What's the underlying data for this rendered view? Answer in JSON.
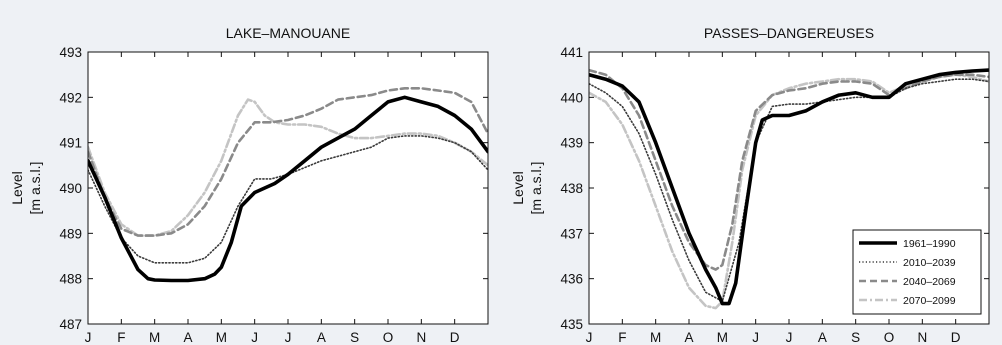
{
  "chart_data": [
    {
      "type": "line",
      "title": "LAKE–MANOUANE",
      "ylabel_line1": "Level",
      "ylabel_line2": "[m a.s.l.]",
      "xlabel": "",
      "x_ticks": [
        "J",
        "F",
        "M",
        "A",
        "M",
        "J",
        "J",
        "A",
        "S",
        "O",
        "N",
        "D"
      ],
      "y_ticks": [
        "487",
        "488",
        "489",
        "490",
        "491",
        "492",
        "493"
      ],
      "ylim": [
        487,
        493
      ],
      "xlim": [
        0,
        12
      ],
      "grid": false,
      "legend": null,
      "series": [
        {
          "name": "1961–1990",
          "style": "solid",
          "color": "#000000",
          "x": [
            0,
            0.5,
            1,
            1.5,
            1.8,
            2,
            2.5,
            3,
            3.5,
            3.8,
            4,
            4.3,
            4.6,
            5,
            5.3,
            5.6,
            6,
            6.5,
            7,
            7.5,
            8,
            8.5,
            9,
            9.5,
            10,
            10.5,
            11,
            11.5,
            12
          ],
          "y": [
            490.6,
            489.8,
            488.9,
            488.2,
            488.0,
            487.97,
            487.96,
            487.96,
            488.0,
            488.1,
            488.25,
            488.8,
            489.6,
            489.9,
            490.0,
            490.1,
            490.3,
            490.6,
            490.9,
            491.1,
            491.3,
            491.6,
            491.9,
            492.0,
            491.9,
            491.8,
            491.6,
            491.3,
            490.8
          ]
        },
        {
          "name": "2010–2039",
          "style": "dotted",
          "color": "#3a3a3a",
          "x": [
            0,
            0.5,
            1,
            1.5,
            2,
            2.5,
            3,
            3.5,
            4,
            4.5,
            5,
            5.5,
            6,
            6.5,
            7,
            7.5,
            8,
            8.5,
            9,
            9.5,
            10,
            10.5,
            11,
            11.5,
            12
          ],
          "y": [
            490.4,
            489.6,
            488.9,
            488.5,
            488.35,
            488.35,
            488.35,
            488.45,
            488.8,
            489.6,
            490.2,
            490.2,
            490.3,
            490.45,
            490.6,
            490.7,
            490.8,
            490.9,
            491.1,
            491.15,
            491.15,
            491.1,
            491.0,
            490.8,
            490.4
          ]
        },
        {
          "name": "2040–2069",
          "style": "dashed",
          "color": "#8a8a8a",
          "x": [
            0,
            0.5,
            1,
            1.5,
            2,
            2.5,
            3,
            3.5,
            4,
            4.5,
            5,
            5.5,
            6,
            6.5,
            7,
            7.5,
            8,
            8.5,
            9,
            9.5,
            10,
            10.5,
            11,
            11.5,
            12
          ],
          "y": [
            490.8,
            489.8,
            489.1,
            488.95,
            488.95,
            489.0,
            489.2,
            489.6,
            490.2,
            491.0,
            491.45,
            491.45,
            491.5,
            491.6,
            491.75,
            491.95,
            492.0,
            492.05,
            492.15,
            492.2,
            492.2,
            492.15,
            492.1,
            491.9,
            491.2
          ]
        },
        {
          "name": "2070–2099",
          "style": "dashdot",
          "color": "#c4c4c4",
          "x": [
            0,
            0.5,
            1,
            1.5,
            2,
            2.5,
            3,
            3.5,
            4,
            4.5,
            4.8,
            5,
            5.3,
            5.6,
            6,
            6.5,
            7,
            7.5,
            8,
            8.5,
            9,
            9.5,
            10,
            10.5,
            11,
            11.5,
            12
          ],
          "y": [
            490.9,
            489.9,
            489.2,
            488.95,
            488.95,
            489.05,
            489.4,
            489.9,
            490.6,
            491.6,
            491.95,
            491.9,
            491.6,
            491.45,
            491.4,
            491.4,
            491.35,
            491.2,
            491.1,
            491.1,
            491.15,
            491.2,
            491.2,
            491.15,
            491.0,
            490.8,
            490.5
          ]
        }
      ]
    },
    {
      "type": "line",
      "title": "PASSES–DANGEREUSES",
      "ylabel_line1": "Level",
      "ylabel_line2": "[m a.s.l.]",
      "xlabel": "",
      "x_ticks": [
        "J",
        "F",
        "M",
        "A",
        "M",
        "J",
        "J",
        "A",
        "S",
        "O",
        "N",
        "D"
      ],
      "y_ticks": [
        "435",
        "436",
        "437",
        "438",
        "439",
        "440",
        "441"
      ],
      "ylim": [
        435,
        441
      ],
      "xlim": [
        0,
        12
      ],
      "grid": false,
      "legend": "lower-right",
      "series": [
        {
          "name": "1961–1990",
          "style": "solid",
          "color": "#000000",
          "x": [
            0,
            0.5,
            1,
            1.5,
            2,
            2.5,
            3,
            3.5,
            3.8,
            4,
            4.2,
            4.4,
            4.7,
            5,
            5.2,
            5.5,
            6,
            6.5,
            7,
            7.5,
            8,
            8.5,
            9,
            9.5,
            10,
            10.5,
            11,
            11.5,
            12
          ],
          "y": [
            440.5,
            440.4,
            440.25,
            439.9,
            439.0,
            438.0,
            437.0,
            436.2,
            435.8,
            435.45,
            435.45,
            435.9,
            437.5,
            439.0,
            439.5,
            439.6,
            439.6,
            439.7,
            439.9,
            440.05,
            440.1,
            440.0,
            440.0,
            440.3,
            440.4,
            440.5,
            440.55,
            440.58,
            440.6
          ]
        },
        {
          "name": "2010–2039",
          "style": "dotted",
          "color": "#3a3a3a",
          "x": [
            0,
            0.5,
            1,
            1.5,
            2,
            2.5,
            3,
            3.5,
            4,
            4.5,
            5,
            5.5,
            6,
            6.5,
            7,
            7.5,
            8,
            8.5,
            9,
            9.5,
            10,
            10.5,
            11,
            11.5,
            12
          ],
          "y": [
            440.3,
            440.1,
            439.8,
            439.2,
            438.3,
            437.3,
            436.4,
            435.7,
            435.5,
            436.8,
            439.0,
            439.8,
            439.85,
            439.85,
            439.9,
            439.95,
            440.0,
            440.0,
            440.0,
            440.2,
            440.3,
            440.35,
            440.4,
            440.4,
            440.35
          ]
        },
        {
          "name": "2040–2069",
          "style": "dashed",
          "color": "#8a8a8a",
          "x": [
            0,
            0.5,
            1,
            1.5,
            2,
            2.5,
            3,
            3.5,
            3.8,
            4,
            4.3,
            4.6,
            5,
            5.5,
            6,
            6.5,
            7,
            7.5,
            8,
            8.5,
            9,
            9.5,
            10,
            10.5,
            11,
            11.5,
            12
          ],
          "y": [
            440.6,
            440.5,
            440.2,
            439.6,
            438.6,
            437.6,
            436.8,
            436.3,
            436.2,
            436.3,
            437.2,
            438.6,
            439.7,
            440.05,
            440.15,
            440.2,
            440.3,
            440.35,
            440.35,
            440.3,
            440.05,
            440.2,
            440.35,
            440.45,
            440.5,
            440.5,
            440.45
          ]
        },
        {
          "name": "2070–2099",
          "style": "dashdot",
          "color": "#c4c4c4",
          "x": [
            0,
            0.5,
            1,
            1.5,
            2,
            2.5,
            3,
            3.5,
            3.8,
            4,
            4.3,
            4.6,
            5,
            5.5,
            6,
            6.5,
            7,
            7.5,
            8,
            8.5,
            9,
            9.5,
            10,
            10.5,
            11,
            11.5,
            12
          ],
          "y": [
            440.1,
            439.9,
            439.4,
            438.6,
            437.6,
            436.6,
            435.8,
            435.4,
            435.35,
            435.5,
            436.8,
            438.4,
            439.6,
            440.05,
            440.2,
            440.3,
            440.35,
            440.4,
            440.4,
            440.35,
            440.1,
            440.25,
            440.35,
            440.45,
            440.5,
            440.45,
            440.35
          ]
        }
      ]
    }
  ]
}
